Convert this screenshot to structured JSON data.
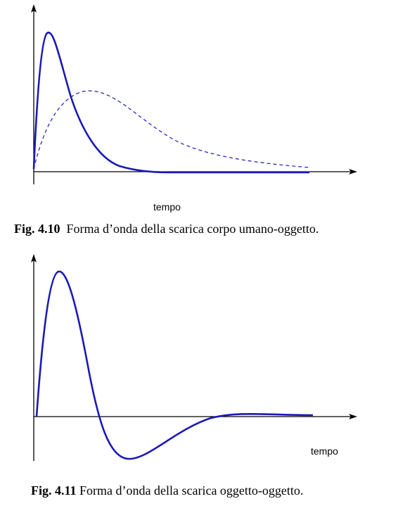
{
  "figures": [
    {
      "number": "Fig. 4.10",
      "caption": "Forma d’onda della scarica corpo umano-oggetto.",
      "x_axis_label": "tempo"
    },
    {
      "number": "Fig. 4.11",
      "caption": "Forma d’onda della scarica oggetto-oggetto.",
      "x_axis_label": "tempo"
    }
  ],
  "colors": {
    "curve": "#1a1ab4",
    "axis": "#000000"
  },
  "chart_data": [
    {
      "type": "line",
      "title": "",
      "xlabel": "tempo",
      "ylabel": "",
      "series": [
        {
          "style": "solid",
          "description_shape": "fast rise, sharp peak, exponential decay to zero"
        },
        {
          "style": "dashed",
          "description_shape": "slow rise, broad peak, long decay"
        }
      ],
      "grid": false
    },
    {
      "type": "line",
      "title": "",
      "xlabel": "tempo",
      "ylabel": "",
      "series": [
        {
          "style": "solid",
          "description_shape": "fast rise to peak, undershoot below zero, return to zero"
        }
      ],
      "grid": false
    }
  ]
}
